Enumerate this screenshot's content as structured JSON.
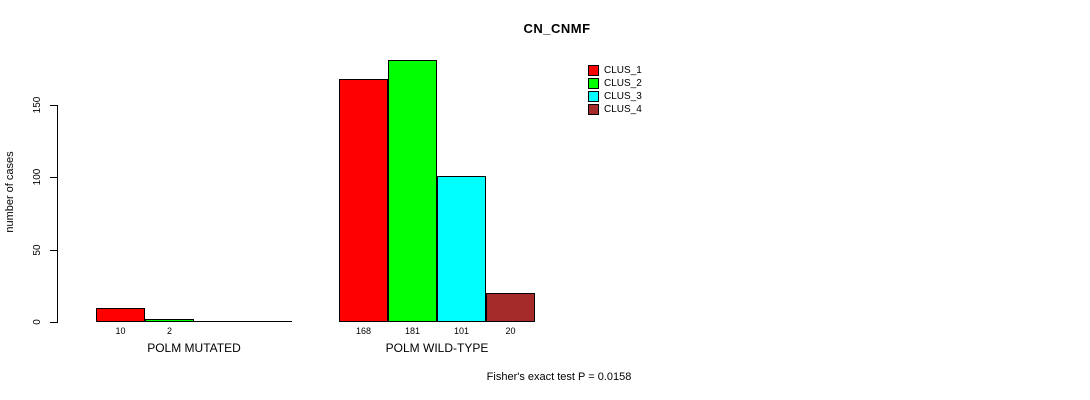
{
  "title": "CN_CNMF",
  "ylabel": "number of cases",
  "footer": "Fisher's exact test P = 0.0158",
  "chart_data": {
    "type": "bar",
    "title": "CN_CNMF",
    "xlabel": "",
    "ylabel": "number of cases",
    "yticks": [
      0,
      50,
      100,
      150
    ],
    "axis_range": [
      0,
      150
    ],
    "grid": false,
    "legend_position": "top-right",
    "series": [
      {
        "name": "CLUS_1",
        "color": "#ff0000"
      },
      {
        "name": "CLUS_2",
        "color": "#00ff00"
      },
      {
        "name": "CLUS_3",
        "color": "#00ffff"
      },
      {
        "name": "CLUS_4",
        "color": "#a52a2a"
      }
    ],
    "groups": [
      {
        "label": "POLM MUTATED",
        "values": [
          10,
          2,
          0,
          0
        ],
        "value_labels": [
          "10",
          "2",
          "",
          ""
        ]
      },
      {
        "label": "POLM WILD-TYPE",
        "values": [
          168,
          181,
          101,
          20
        ],
        "value_labels": [
          "168",
          "181",
          "101",
          "20"
        ]
      }
    ],
    "annotation": "Fisher's exact test P = 0.0158"
  }
}
